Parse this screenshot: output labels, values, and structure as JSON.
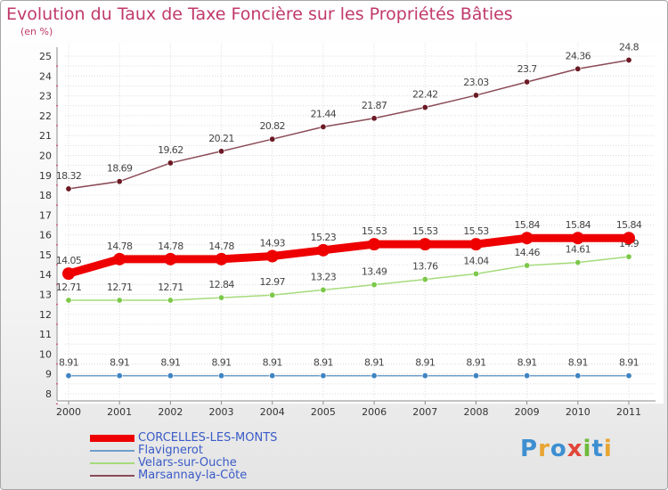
{
  "title": "Evolution du Taux de Taxe Foncière sur les Propriétés Bâties",
  "unit_label": "(en %)",
  "logo": {
    "text": "Proxiti",
    "letter_colors": [
      "#3d8fd1",
      "#e8a531",
      "#3d8fd1",
      "#e2463a",
      "#6dbb3c",
      "#3d8fd1",
      "#e8a531"
    ]
  },
  "chart_data": {
    "type": "line",
    "title": "Evolution du Taux de Taxe Foncière sur les Propriétés Bâties",
    "ylabel": "(en %)",
    "xlabel": "",
    "x": [
      "2000",
      "2001",
      "2002",
      "2003",
      "2004",
      "2005",
      "2006",
      "2007",
      "2008",
      "2009",
      "2010",
      "2011"
    ],
    "ylim": [
      8,
      25
    ],
    "yticks": [
      "8",
      "9",
      "10",
      "11",
      "12",
      "13",
      "14",
      "15",
      "16",
      "17",
      "18",
      "19",
      "20",
      "21",
      "22",
      "23",
      "24",
      "25"
    ],
    "grid": true,
    "legend_position": "bottom-left",
    "series": [
      {
        "name": "CORCELLES-LES-MONTS",
        "color": "#ee0000",
        "emphasis": true,
        "values": [
          14.05,
          14.78,
          14.78,
          14.78,
          14.93,
          15.23,
          15.53,
          15.53,
          15.53,
          15.84,
          15.84,
          15.84
        ],
        "labels": [
          "14.05",
          "14.78",
          "14.78",
          "14.78",
          "14.93",
          "15.23",
          "15.53",
          "15.53",
          "15.53",
          "15.84",
          "15.84",
          "15.84"
        ]
      },
      {
        "name": "Flavignerot",
        "color": "#6f9ec9",
        "marker": "#3f84c2",
        "values": [
          8.91,
          8.91,
          8.91,
          8.91,
          8.91,
          8.91,
          8.91,
          8.91,
          8.91,
          8.91,
          8.91,
          8.91
        ],
        "labels": [
          "8.91",
          "8.91",
          "8.91",
          "8.91",
          "8.91",
          "8.91",
          "8.91",
          "8.91",
          "8.91",
          "8.91",
          "8.91",
          "8.91"
        ]
      },
      {
        "name": "Velars-sur-Ouche",
        "color": "#a5db7b",
        "marker": "#7cc84a",
        "values": [
          12.71,
          12.71,
          12.71,
          12.84,
          12.97,
          13.23,
          13.49,
          13.76,
          14.04,
          14.46,
          14.61,
          14.9
        ],
        "labels": [
          "12.71",
          "12.71",
          "12.71",
          "12.84",
          "12.97",
          "13.23",
          "13.49",
          "13.76",
          "14.04",
          "14.46",
          "14.61",
          "14.9"
        ]
      },
      {
        "name": "Marsannay-la-Côte",
        "color": "#8a4b55",
        "marker": "#6b1a25",
        "values": [
          18.32,
          18.69,
          19.62,
          20.21,
          20.82,
          21.44,
          21.87,
          22.42,
          23.03,
          23.7,
          24.36,
          24.8
        ],
        "labels": [
          "18.32",
          "18.69",
          "19.62",
          "20.21",
          "20.82",
          "21.44",
          "21.87",
          "22.42",
          "23.03",
          "23.7",
          "24.36",
          "24.8"
        ]
      }
    ]
  }
}
